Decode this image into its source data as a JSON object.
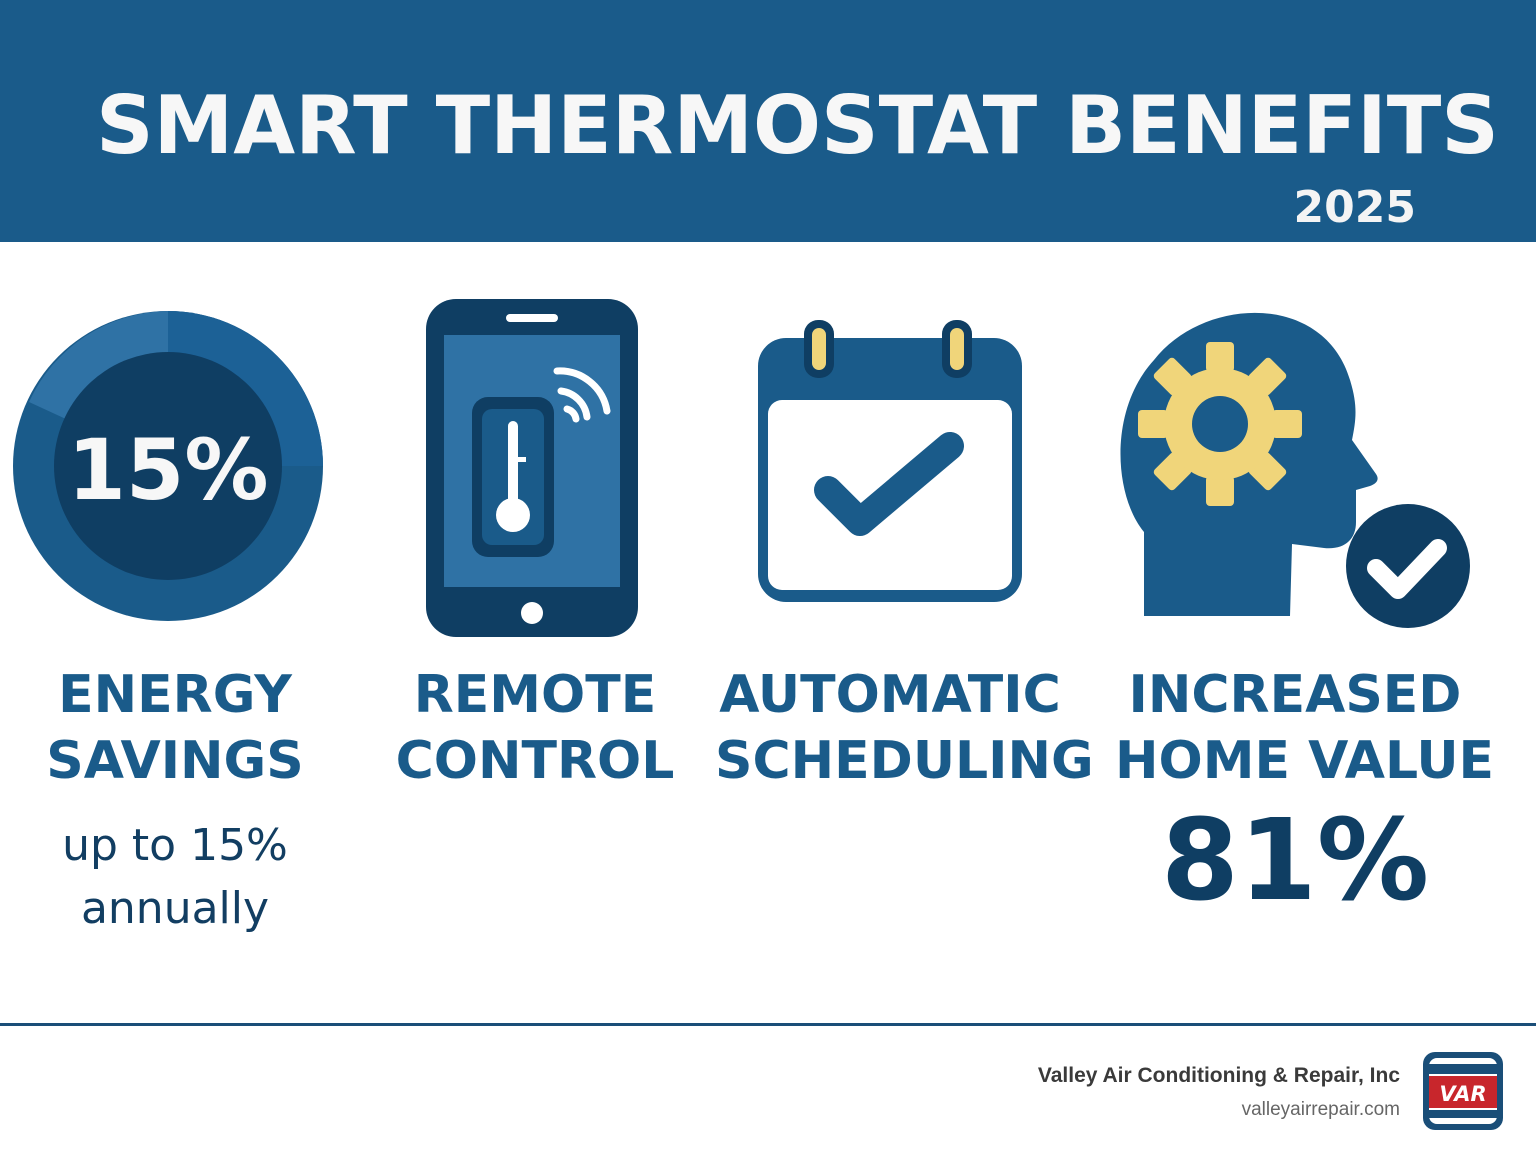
{
  "header": {
    "title": "SMART THERMOSTAT BENEFITS",
    "year": "2025"
  },
  "benefits": [
    {
      "icon": "donut-gauge-icon",
      "icon_text": "15%",
      "label_line1": "ENERGY",
      "label_line2": "SAVINGS",
      "detail_line1": "up to 15%",
      "detail_line2": "annually"
    },
    {
      "icon": "smartphone-thermometer-icon",
      "label_line1": "REMOTE",
      "label_line2": "CONTROL"
    },
    {
      "icon": "calendar-check-icon",
      "label_line1": "AUTOMATIC",
      "label_line2": "SCHEDULING"
    },
    {
      "icon": "head-gear-check-icon",
      "label_line1": "INCREASED",
      "label_line2": "HOME VALUE",
      "stat": "81%"
    }
  ],
  "footer": {
    "company": "Valley Air Conditioning & Repair, Inc",
    "website": "valleyairrepair.com",
    "logo_text": "VAR"
  },
  "colors": {
    "primary": "#1a5b8a",
    "dark": "#0f3e63",
    "accent": "#f0d57a",
    "background": "#ffffff"
  }
}
